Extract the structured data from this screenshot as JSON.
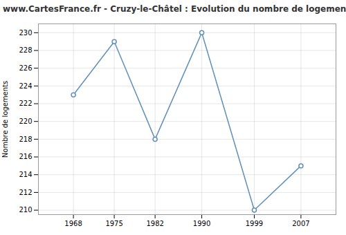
{
  "chart_data": {
    "type": "line",
    "title": "www.CartesFrance.fr - Cruzy-le-Châtel : Evolution du nombre de logements",
    "ylabel": "Nombre de logements",
    "x": [
      1968,
      1975,
      1982,
      1990,
      1999,
      2007
    ],
    "values": [
      223,
      229,
      218,
      230,
      210,
      215
    ],
    "color": "#6090b8",
    "marker": "o",
    "xlim": [
      1962,
      2013
    ],
    "ylim": [
      209.5,
      231
    ],
    "xticks": [
      1968,
      1975,
      1982,
      1990,
      1999,
      2007
    ],
    "yticks": [
      210,
      212,
      214,
      216,
      218,
      220,
      222,
      224,
      226,
      228,
      230
    ],
    "grid": true
  }
}
